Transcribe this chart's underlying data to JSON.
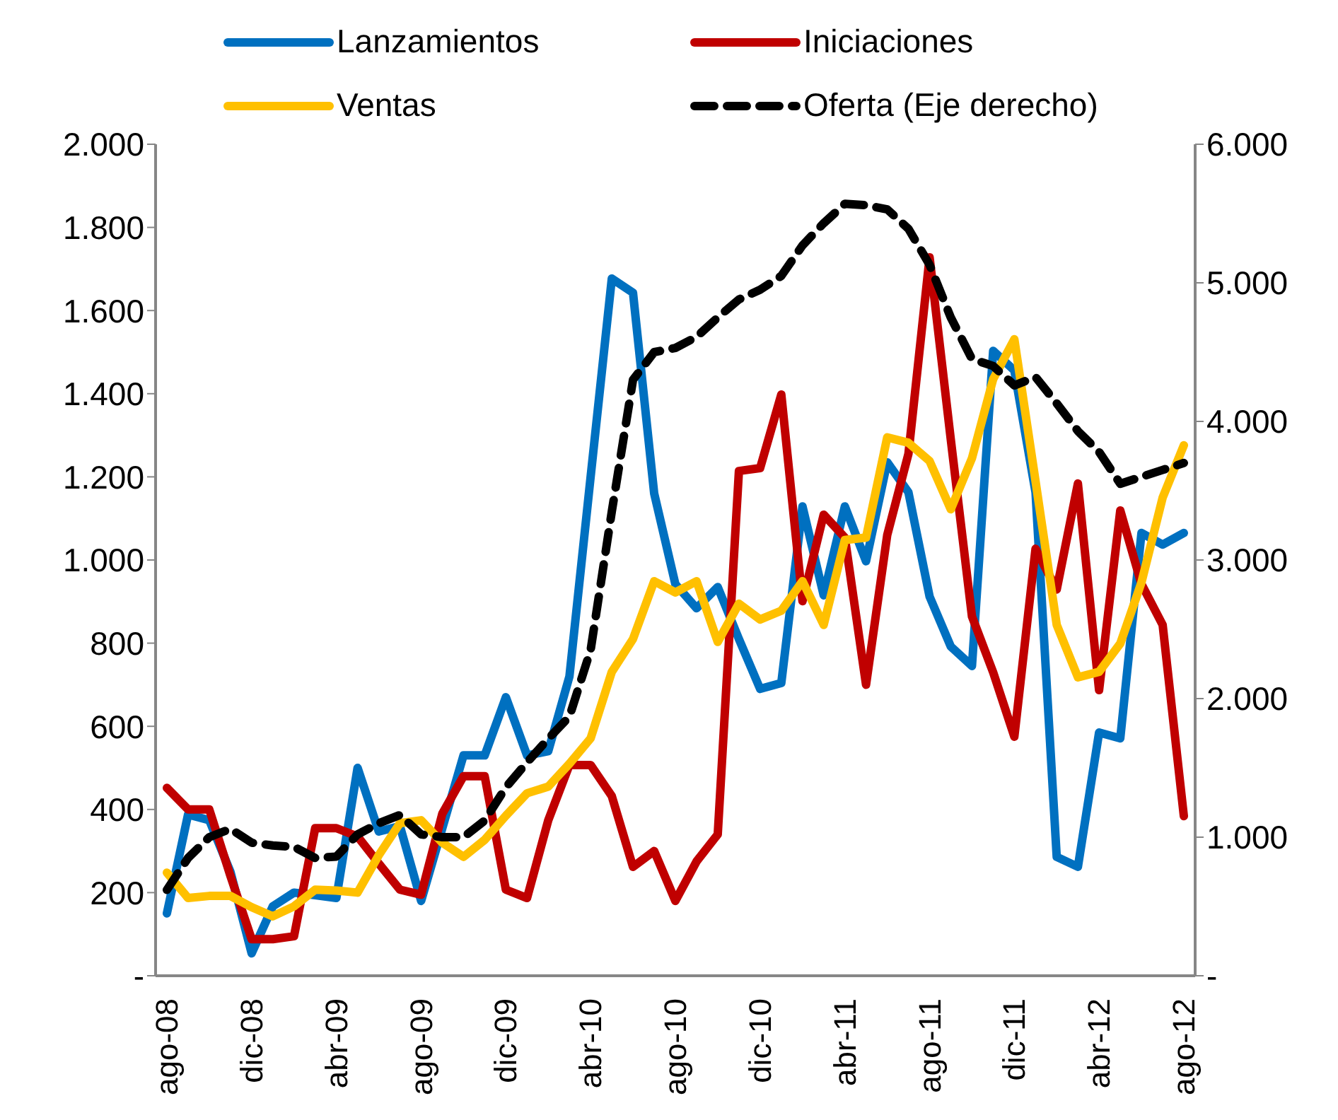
{
  "chart_data": {
    "type": "line",
    "categories": [
      "ago-08",
      null,
      null,
      null,
      "dic-08",
      null,
      null,
      null,
      "abr-09",
      null,
      null,
      null,
      "ago-09",
      null,
      null,
      null,
      "dic-09",
      null,
      null,
      null,
      "abr-10",
      null,
      null,
      null,
      "ago-10",
      null,
      null,
      null,
      "dic-10",
      null,
      null,
      null,
      "abr-11",
      null,
      null,
      null,
      "ago-11",
      null,
      null,
      null,
      "dic-11",
      null,
      null,
      null,
      "abr-12",
      null,
      null,
      null,
      "ago-12"
    ],
    "series": [
      {
        "name": "Lanzamientos",
        "color": "#0070c0",
        "values": [
          150,
          388,
          374,
          250,
          54,
          167,
          200,
          194,
          187,
          500,
          347,
          360,
          180,
          355,
          530,
          530,
          670,
          530,
          540,
          720,
          1200,
          1677,
          1643,
          1160,
          942,
          884,
          935,
          810,
          690,
          704,
          1129,
          915,
          1129,
          997,
          1235,
          1163,
          912,
          792,
          745,
          1503,
          1456,
          1163,
          286,
          262,
          585,
          571,
          1065,
          1037,
          1065
        ]
      },
      {
        "name": "Iniciaciones",
        "color": "#c00000",
        "values": [
          452,
          400,
          400,
          240,
          88,
          88,
          95,
          355,
          355,
          335,
          270,
          207,
          195,
          390,
          480,
          480,
          207,
          187,
          374,
          507,
          507,
          432,
          262,
          300,
          180,
          275,
          340,
          1214,
          1221,
          1398,
          901,
          1109,
          1054,
          700,
          1060,
          1255,
          1728,
          1290,
          864,
          730,
          575,
          1027,
          929,
          1184,
          687,
          1119,
          942,
          844,
          384
        ]
      },
      {
        "name": "Ventas",
        "color": "#ffc000",
        "values": [
          248,
          187,
          192,
          192,
          165,
          143,
          167,
          207,
          205,
          200,
          290,
          367,
          374,
          320,
          286,
          327,
          385,
          439,
          455,
          510,
          571,
          731,
          810,
          949,
          922,
          949,
          803,
          895,
          857,
          878,
          949,
          844,
          1048,
          1054,
          1295,
          1282,
          1238,
          1122,
          1245,
          1435,
          1531,
          1190,
          844,
          718,
          731,
          799,
          946,
          1150,
          1276
        ]
      },
      {
        "name": "Oferta (Eje derecho)",
        "color": "#000000",
        "axis": "y2",
        "line_style": "dashed",
        "values": [
          620,
          850,
          1000,
          1060,
          960,
          940,
          930,
          850,
          860,
          1020,
          1100,
          1160,
          1020,
          1000,
          1000,
          1120,
          1360,
          1540,
          1710,
          1870,
          2350,
          3350,
          4300,
          4500,
          4530,
          4610,
          4750,
          4880,
          4950,
          5050,
          5270,
          5430,
          5570,
          5560,
          5530,
          5390,
          5130,
          4750,
          4450,
          4400,
          4260,
          4320,
          4130,
          3930,
          3780,
          3550,
          3600,
          3650,
          3700
        ]
      }
    ],
    "ylim": [
      0,
      2000
    ],
    "yticks": [
      {
        "value": 0,
        "label": "-"
      },
      {
        "value": 200,
        "label": "200"
      },
      {
        "value": 400,
        "label": "400"
      },
      {
        "value": 600,
        "label": "600"
      },
      {
        "value": 800,
        "label": "800"
      },
      {
        "value": 1000,
        "label": "1.000"
      },
      {
        "value": 1200,
        "label": "1.200"
      },
      {
        "value": 1400,
        "label": "1.400"
      },
      {
        "value": 1600,
        "label": "1.600"
      },
      {
        "value": 1800,
        "label": "1.800"
      },
      {
        "value": 2000,
        "label": "2.000"
      }
    ],
    "y2lim": [
      0,
      6000
    ],
    "y2ticks": [
      {
        "value": 0,
        "label": "-"
      },
      {
        "value": 1000,
        "label": "1.000"
      },
      {
        "value": 2000,
        "label": "2.000"
      },
      {
        "value": 3000,
        "label": "3.000"
      },
      {
        "value": 4000,
        "label": "4.000"
      },
      {
        "value": 5000,
        "label": "5.000"
      },
      {
        "value": 6000,
        "label": "6.000"
      }
    ],
    "grid": false,
    "legend": "top",
    "marker": "none",
    "line_style": "solid"
  }
}
